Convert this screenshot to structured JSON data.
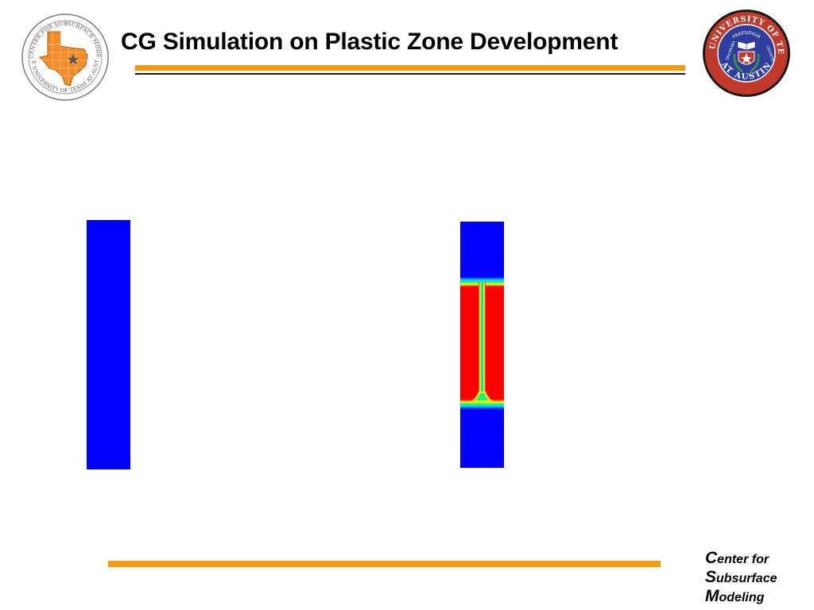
{
  "header": {
    "title": "CG Simulation on Plastic Zone Development"
  },
  "logos": {
    "left": {
      "icon": "center-for-subsurface-modeling-seal-icon",
      "ring_text": "THE CENTER FOR SUBSURFACE MODELING · THE UNIVERSITY OF TEXAS AT AUSTIN",
      "color": "#f28c28"
    },
    "right": {
      "icon": "university-of-texas-seal-icon",
      "top_text": "THE UNIVERSITY OF TEXAS",
      "bottom_text": "AT AUSTIN",
      "motto_top": "PRAESIDIUM",
      "motto_left": "DISCIPLINA",
      "motto_right": "CIVITATIS",
      "colors": {
        "outer": "#c0392b",
        "inner": "#2c3e9e"
      }
    }
  },
  "figures": {
    "left_panel": {
      "description_color": "#0000ff"
    },
    "right_panel": {
      "colors": {
        "elastic": "#0000ff",
        "plastic": "#ff0000",
        "transition": "#00ff80"
      }
    }
  },
  "footer": {
    "line1_cap": "C",
    "line1_rest": "enter for",
    "line2_cap": "S",
    "line2_rest": "ubsurface",
    "line3_cap": "M",
    "line3_rest": "odeling",
    "accent": "#f39c12"
  }
}
